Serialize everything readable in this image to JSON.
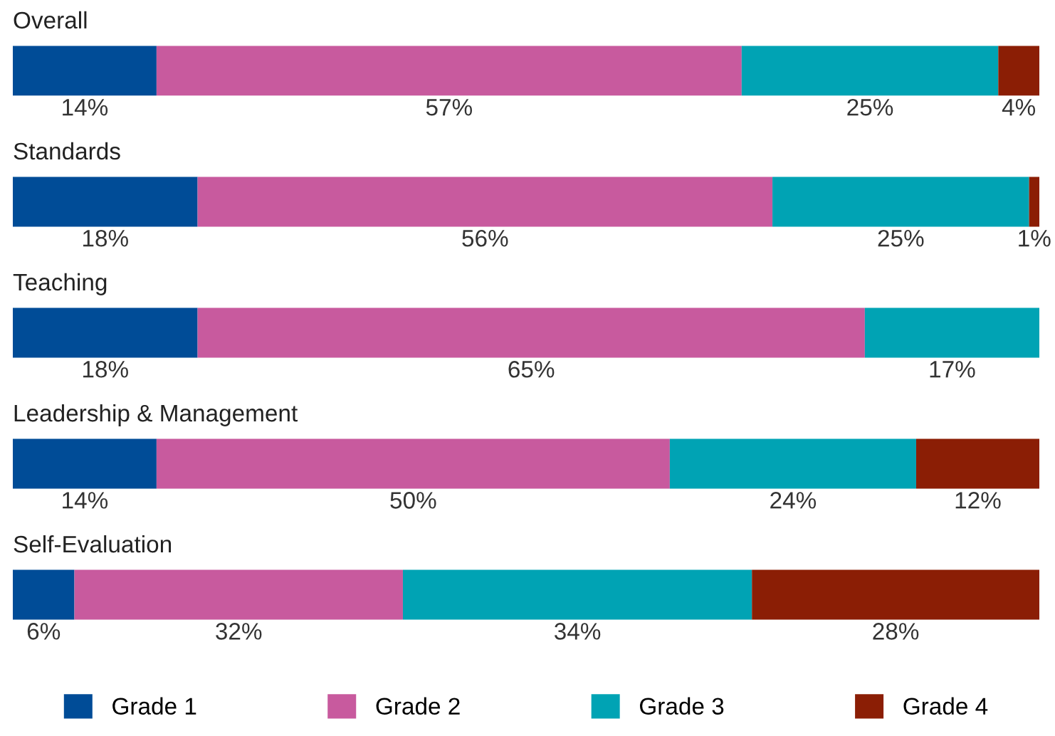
{
  "chart_data": {
    "type": "bar",
    "orientation": "horizontal",
    "stacked": true,
    "tick_labels": false,
    "legend": "bottom",
    "categories": [
      "Overall",
      "Standards",
      "Teaching",
      "Leadership & Management",
      "Self-Evaluation"
    ],
    "series": [
      {
        "name": "Grade 1",
        "color": "#004c97",
        "values": [
          14,
          18,
          18,
          14,
          6
        ],
        "value_labels": [
          "14%",
          "18%",
          "18%",
          "14%",
          "6%"
        ]
      },
      {
        "name": "Grade 2",
        "color": "#c85a9e",
        "values": [
          57,
          56,
          65,
          50,
          32
        ],
        "value_labels": [
          "57%",
          "56%",
          "65%",
          "50%",
          "32%"
        ]
      },
      {
        "name": "Grade 3",
        "color": "#00a3b4",
        "values": [
          25,
          25,
          17,
          24,
          34
        ],
        "value_labels": [
          "25%",
          "25%",
          "17%",
          "24%",
          "34%"
        ]
      },
      {
        "name": "Grade 4",
        "color": "#8b1e05",
        "values": [
          4,
          1,
          null,
          12,
          28
        ],
        "value_labels": [
          "4%",
          "1%",
          null,
          "12%",
          "28%"
        ]
      }
    ]
  }
}
